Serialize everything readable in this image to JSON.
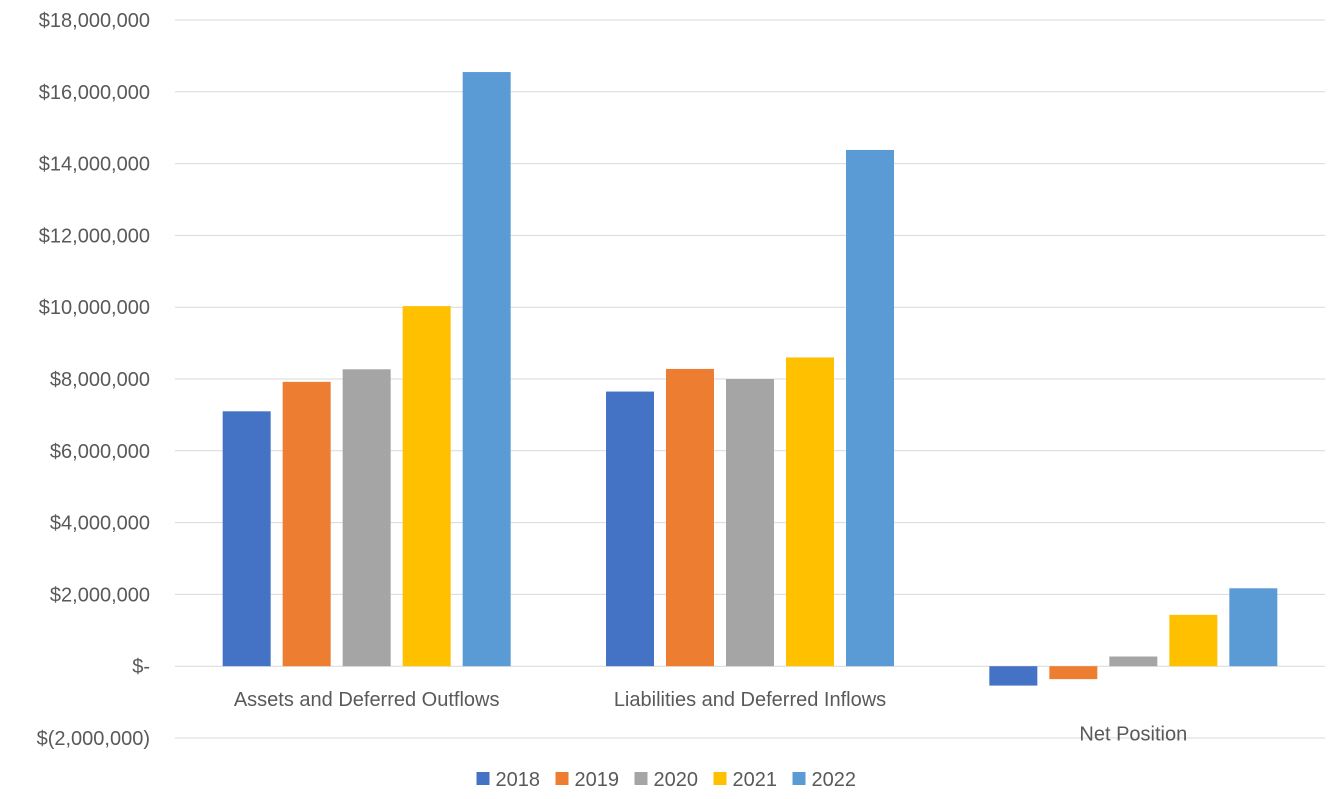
{
  "chart_data": {
    "type": "bar",
    "title": "",
    "xlabel": "",
    "ylabel": "",
    "categories": [
      "Assets and Deferred Outflows",
      "Liabilities and Deferred Inflows",
      "Net Position"
    ],
    "series": [
      {
        "name": "2018",
        "color": "#4472C4",
        "values": [
          7100000,
          7650000,
          -540000
        ]
      },
      {
        "name": "2019",
        "color": "#ED7D31",
        "values": [
          7920000,
          8280000,
          -360000
        ]
      },
      {
        "name": "2020",
        "color": "#A5A5A5",
        "values": [
          8270000,
          8000000,
          270000
        ]
      },
      {
        "name": "2021",
        "color": "#FFC000",
        "values": [
          10030000,
          8600000,
          1430000
        ]
      },
      {
        "name": "2022",
        "color": "#5B9BD5",
        "values": [
          16550000,
          14380000,
          2170000
        ]
      }
    ],
    "ylim": [
      -2000000,
      18000000
    ],
    "y_ticks": [
      {
        "value": 18000000,
        "label": "$18,000,000"
      },
      {
        "value": 16000000,
        "label": "$16,000,000"
      },
      {
        "value": 14000000,
        "label": "$14,000,000"
      },
      {
        "value": 12000000,
        "label": "$12,000,000"
      },
      {
        "value": 10000000,
        "label": "$10,000,000"
      },
      {
        "value": 8000000,
        "label": "$8,000,000"
      },
      {
        "value": 6000000,
        "label": "$6,000,000"
      },
      {
        "value": 4000000,
        "label": "$4,000,000"
      },
      {
        "value": 2000000,
        "label": "$2,000,000"
      },
      {
        "value": 0,
        "label": "$-"
      },
      {
        "value": -2000000,
        "label": "$(2,000,000)"
      }
    ],
    "grid": true,
    "legend_position": "bottom"
  }
}
